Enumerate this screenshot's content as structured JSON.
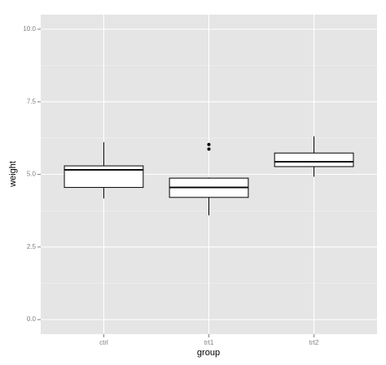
{
  "chart_data": {
    "type": "box",
    "xlabel": "group",
    "ylabel": "weight",
    "categories": [
      "ctrl",
      "trt1",
      "trt2"
    ],
    "boxes": [
      {
        "min": 4.17,
        "q1": 4.55,
        "median": 5.155,
        "q3": 5.2925,
        "max": 6.11,
        "outliers": []
      },
      {
        "min": 3.59,
        "q1": 4.2075,
        "median": 4.55,
        "q3": 4.87,
        "max": 4.89,
        "outliers": [
          5.87,
          6.03
        ]
      },
      {
        "min": 4.92,
        "q1": 5.2675,
        "median": 5.435,
        "q3": 5.735,
        "max": 6.31,
        "outliers": []
      }
    ],
    "color": "#000000",
    "box_fill": "#ffffff",
    "ylim": [
      -0.5,
      10.5
    ],
    "yticks": [
      {
        "value": 0,
        "label": "0.0"
      },
      {
        "value": 2.5,
        "label": "2.5"
      },
      {
        "value": 5,
        "label": "5.0"
      },
      {
        "value": 7.5,
        "label": "7.5"
      },
      {
        "value": 10,
        "label": "10.0"
      }
    ],
    "grid": true
  }
}
